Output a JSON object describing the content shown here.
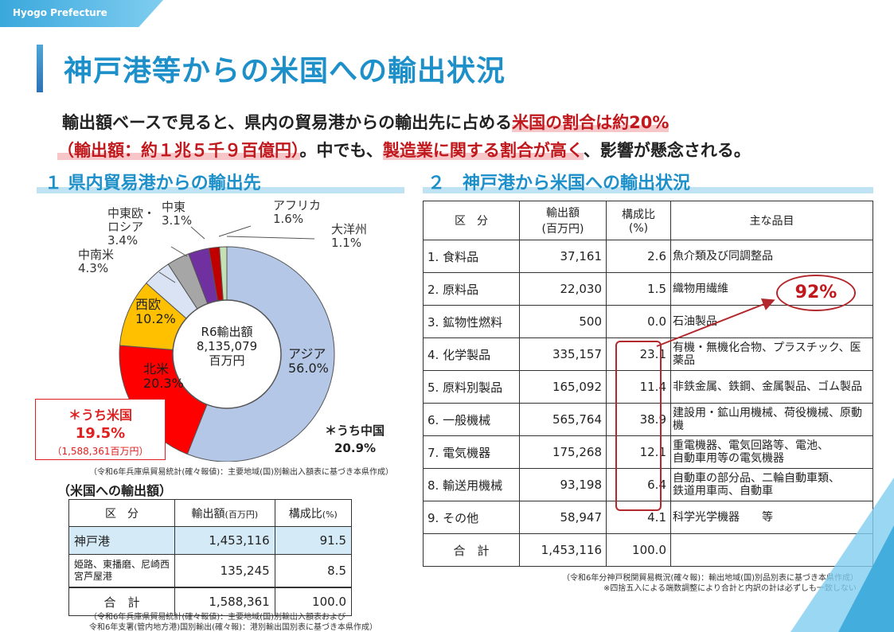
{
  "header": {
    "tag": "Hyogo Prefecture",
    "title": "神戸港等からの米国への輸出状況"
  },
  "intro": {
    "line1_a": "輸出額ベースで見ると、県内の貿易港からの輸出先に占める",
    "line1_b": "米国の割合は約20%",
    "line2_a": "（輸出額：約１兆５千９百億円）",
    "line2_b": "。中でも、",
    "line2_c": "製造業に関する割合が高く",
    "line2_d": "、影響が懸念される。"
  },
  "section1": {
    "title": "１ 県内貿易港からの輸出先",
    "center": {
      "l1": "R6輸出額",
      "l2": "8,135,079",
      "l3": "百万円"
    },
    "us_box": {
      "l1": "＊うち米国",
      "l2": "19.5%",
      "l3": "（1,588,361百万円）"
    },
    "china": {
      "l1": "＊うち中国",
      "l2": "20.9%"
    },
    "source": "（令和6年兵庫県貿易統計(確々報値)：主要地域(国)別輸出入額表に基づき本県作成）",
    "table_title": "（米国への輸出額）",
    "table": {
      "headers": [
        "区　分",
        "輸出額",
        "(百万円)",
        "構成比",
        "(%)"
      ],
      "rows": [
        {
          "name": "神戸港",
          "value": "1,453,116",
          "ratio": "91.5"
        },
        {
          "name": "姫路、東播磨、尼崎西宮芦屋港",
          "value": "135,245",
          "ratio": "8.5"
        },
        {
          "name": "合　計",
          "value": "1,588,361",
          "ratio": "100.0"
        }
      ]
    },
    "source2_l1": "（令和6年兵庫県貿易統計(確々報値)：主要地域(国)別輸出入額表および",
    "source2_l2": "令和6年支署(管内地方港)国別輸出(確々報)：港別輸出国別表に基づき本県作成）"
  },
  "chart_data": {
    "type": "pie",
    "title": "",
    "slices": [
      {
        "label": "アジア",
        "value": 56.0,
        "color": "#b4c7e7"
      },
      {
        "label": "北米",
        "value": 20.3,
        "color": "#ff0000"
      },
      {
        "label": "西欧",
        "value": 10.2,
        "color": "#ffc000"
      },
      {
        "label": "中南米",
        "value": 4.3,
        "color": "#dae3f3"
      },
      {
        "label": "中東欧・ロシア",
        "value": 3.4,
        "color": "#a6a6a6"
      },
      {
        "label": "中東",
        "value": 3.1,
        "color": "#7030a0"
      },
      {
        "label": "アフリカ",
        "value": 1.6,
        "color": "#c00000"
      },
      {
        "label": "大洋州",
        "value": 1.1,
        "color": "#c5e0b4"
      }
    ],
    "slice_labels": {
      "asia": {
        "name": "アジア",
        "pct": "56.0%"
      },
      "namerica": {
        "name": "北米",
        "pct": "20.3%"
      },
      "weurope": {
        "name": "西欧",
        "pct": "10.2%"
      },
      "samerica": {
        "name": "中南米",
        "pct": "4.3%"
      },
      "ceurope": {
        "name1": "中東欧・",
        "name2": "ロシア",
        "pct": "3.4%"
      },
      "meast": {
        "name": "中東",
        "pct": "3.1%"
      },
      "africa": {
        "name": "アフリカ",
        "pct": "1.6%"
      },
      "oceania": {
        "name": "大洋州",
        "pct": "1.1%"
      }
    }
  },
  "section2": {
    "title": "２　神戸港から米国への輸出状況",
    "headers": {
      "kubun": "区　分",
      "value1": "輸出額",
      "value2": "(百万円)",
      "ratio1": "構成比",
      "ratio2": "(%)",
      "items": "主な品目"
    },
    "rows": [
      {
        "name": "1. 食料品",
        "value": "37,161",
        "ratio": "2.6",
        "items1": "魚介類及び同調整品",
        "items2": ""
      },
      {
        "name": "2. 原料品",
        "value": "22,030",
        "ratio": "1.5",
        "items1": "織物用繊維",
        "items2": ""
      },
      {
        "name": "3. 鉱物性燃料",
        "value": "500",
        "ratio": "0.0",
        "items1": "石油製品",
        "items2": ""
      },
      {
        "name": "4. 化学製品",
        "value": "335,157",
        "ratio": "23.1",
        "items1": "有機・無機化合物、プラスチック、医薬品",
        "items2": ""
      },
      {
        "name": "5. 原料別製品",
        "value": "165,092",
        "ratio": "11.4",
        "items1": "非鉄金属、鉄鋼、金属製品、ゴム製品",
        "items2": ""
      },
      {
        "name": "6. 一般機械",
        "value": "565,764",
        "ratio": "38.9",
        "items1": "建設用・鉱山用機械、荷役機械、原動機",
        "items2": ""
      },
      {
        "name": "7. 電気機器",
        "value": "175,268",
        "ratio": "12.1",
        "items1": "重電機器、電気回路等、電池、",
        "items2": "自動車用等の電気機器"
      },
      {
        "name": "8. 輸送用機械",
        "value": "93,198",
        "ratio": "6.4",
        "items1": "自動車の部分品、二輪自動車類、",
        "items2": "鉄道用車両、自動車"
      },
      {
        "name": "9. その他",
        "value": "58,947",
        "ratio": "4.1",
        "items1": "科学光学機器　　等",
        "items2": ""
      }
    ],
    "total": {
      "name": "合　計",
      "value": "1,453,116",
      "ratio": "100.0"
    },
    "highlight": "92%",
    "source_l1": "（令和6年分神戸税関貿易概況(確々報)：輸出地域(国)別品別表に基づき本県作成）",
    "source_l2": "※四捨五入による端数調整により合計と内訳の計は必ずしも一致しない"
  }
}
